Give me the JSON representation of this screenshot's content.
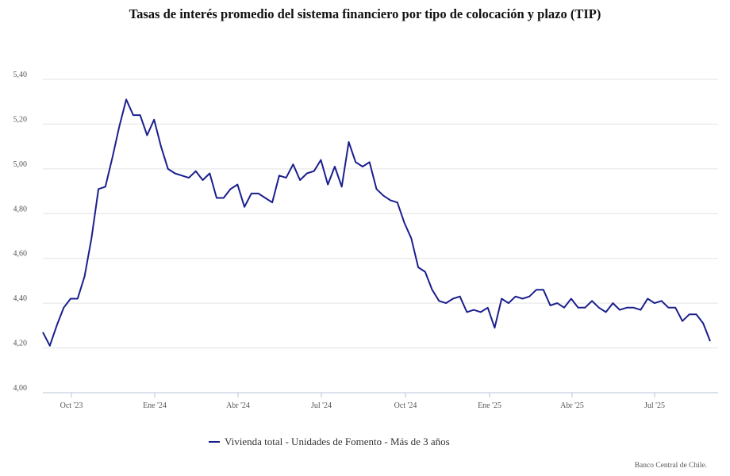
{
  "chart_data": {
    "type": "line",
    "title": "Tasas de interés promedio del sistema financiero por tipo de colocación y plazo (TIP)",
    "xlabel": "",
    "ylabel": "",
    "ylim": [
      4.0,
      5.4
    ],
    "yticks": [
      "4,00",
      "4,20",
      "4,40",
      "4,60",
      "4,80",
      "5,00",
      "5,20",
      "5,40"
    ],
    "xticks": [
      "Oct '23",
      "Ene '24",
      "Abr '24",
      "Jul '24",
      "Oct '24",
      "Ene '25",
      "Abr '25",
      "Jul '25"
    ],
    "grid": true,
    "legend_position": "bottom",
    "series": [
      {
        "name": "Vivienda total - Unidades de Fomento - Más de 3 años",
        "color": "#1a1f8c",
        "values": [
          4.27,
          4.21,
          4.3,
          4.38,
          4.42,
          4.42,
          4.52,
          4.69,
          4.91,
          4.92,
          5.05,
          5.19,
          5.31,
          5.24,
          5.24,
          5.15,
          5.22,
          5.1,
          5.0,
          4.98,
          4.97,
          4.96,
          4.99,
          4.95,
          4.98,
          4.87,
          4.87,
          4.91,
          4.93,
          4.83,
          4.89,
          4.89,
          4.87,
          4.85,
          4.97,
          4.96,
          5.02,
          4.95,
          4.98,
          4.99,
          5.04,
          4.93,
          5.01,
          4.92,
          5.12,
          5.03,
          5.01,
          5.03,
          4.91,
          4.88,
          4.86,
          4.85,
          4.76,
          4.69,
          4.56,
          4.54,
          4.46,
          4.41,
          4.4,
          4.42,
          4.43,
          4.36,
          4.37,
          4.36,
          4.38,
          4.29,
          4.42,
          4.4,
          4.43,
          4.42,
          4.43,
          4.46,
          4.46,
          4.39,
          4.4,
          4.38,
          4.42,
          4.38,
          4.38,
          4.41,
          4.38,
          4.36,
          4.4,
          4.37,
          4.38,
          4.38,
          4.37,
          4.42,
          4.4,
          4.41,
          4.38,
          4.38,
          4.32,
          4.35,
          4.35,
          4.31,
          4.23
        ]
      }
    ]
  },
  "source": "Banco Central de Chile."
}
